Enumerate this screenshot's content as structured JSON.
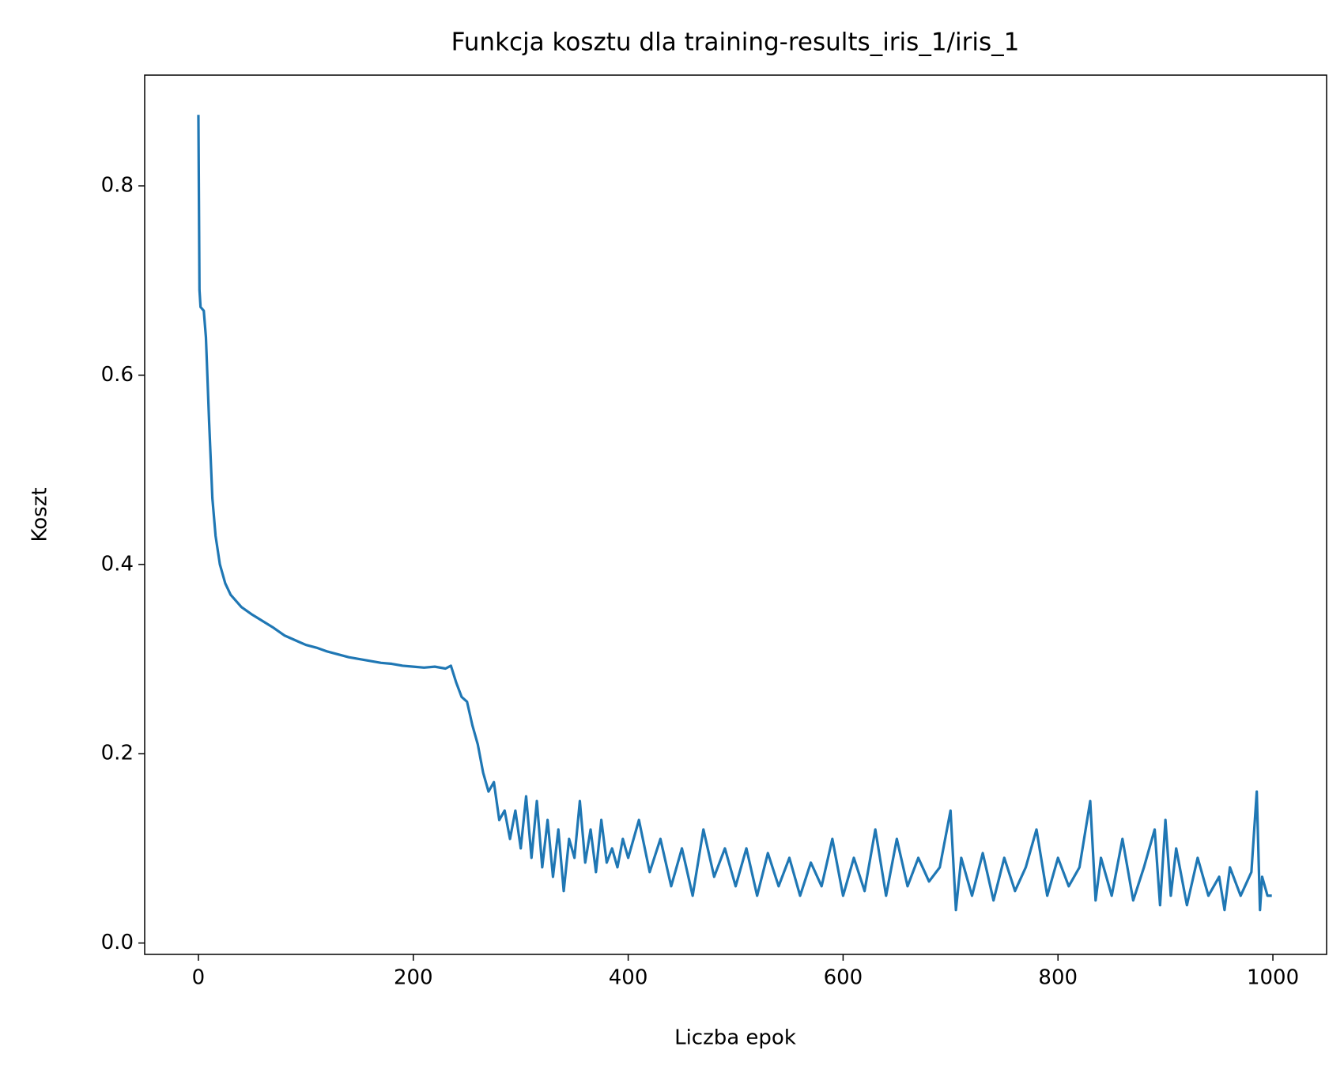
{
  "chart_data": {
    "type": "line",
    "title": "Funkcja kosztu dla training-results_iris_1/iris_1",
    "xlabel": "Liczba epok",
    "ylabel": "Koszt",
    "x": [
      0,
      1,
      2,
      5,
      7,
      10,
      13,
      16,
      20,
      25,
      30,
      40,
      50,
      60,
      70,
      80,
      90,
      100,
      110,
      120,
      130,
      140,
      150,
      160,
      170,
      180,
      190,
      200,
      210,
      220,
      230,
      235,
      240,
      245,
      250,
      255,
      260,
      265,
      270,
      275,
      280,
      285,
      290,
      295,
      300,
      305,
      310,
      315,
      320,
      325,
      330,
      335,
      340,
      345,
      350,
      355,
      360,
      365,
      370,
      375,
      380,
      385,
      390,
      395,
      400,
      410,
      420,
      430,
      440,
      450,
      460,
      470,
      480,
      490,
      500,
      510,
      520,
      530,
      540,
      550,
      560,
      570,
      580,
      590,
      600,
      610,
      620,
      630,
      640,
      650,
      660,
      670,
      680,
      690,
      700,
      705,
      710,
      720,
      730,
      740,
      750,
      760,
      770,
      780,
      790,
      800,
      810,
      820,
      830,
      835,
      840,
      850,
      860,
      870,
      880,
      890,
      895,
      900,
      905,
      910,
      920,
      930,
      940,
      950,
      955,
      960,
      970,
      980,
      985,
      988,
      990,
      995,
      999
    ],
    "series": [
      {
        "color": "#1f77b4",
        "values": [
          0.875,
          0.69,
          0.672,
          0.668,
          0.64,
          0.55,
          0.47,
          0.43,
          0.4,
          0.38,
          0.368,
          0.355,
          0.347,
          0.34,
          0.333,
          0.325,
          0.32,
          0.315,
          0.312,
          0.308,
          0.305,
          0.302,
          0.3,
          0.298,
          0.296,
          0.295,
          0.293,
          0.292,
          0.291,
          0.292,
          0.29,
          0.293,
          0.275,
          0.26,
          0.255,
          0.23,
          0.21,
          0.18,
          0.16,
          0.17,
          0.13,
          0.14,
          0.11,
          0.14,
          0.1,
          0.155,
          0.09,
          0.15,
          0.08,
          0.13,
          0.07,
          0.12,
          0.055,
          0.11,
          0.09,
          0.15,
          0.085,
          0.12,
          0.075,
          0.13,
          0.085,
          0.1,
          0.08,
          0.11,
          0.09,
          0.13,
          0.075,
          0.11,
          0.06,
          0.1,
          0.05,
          0.12,
          0.07,
          0.1,
          0.06,
          0.1,
          0.05,
          0.095,
          0.06,
          0.09,
          0.05,
          0.085,
          0.06,
          0.11,
          0.05,
          0.09,
          0.055,
          0.12,
          0.05,
          0.11,
          0.06,
          0.09,
          0.065,
          0.08,
          0.14,
          0.035,
          0.09,
          0.05,
          0.095,
          0.045,
          0.09,
          0.055,
          0.08,
          0.12,
          0.05,
          0.09,
          0.06,
          0.08,
          0.15,
          0.045,
          0.09,
          0.05,
          0.11,
          0.045,
          0.08,
          0.12,
          0.04,
          0.13,
          0.05,
          0.1,
          0.04,
          0.09,
          0.05,
          0.07,
          0.035,
          0.08,
          0.05,
          0.075,
          0.16,
          0.035,
          0.07,
          0.05,
          0.05
        ]
      }
    ],
    "xlim": [
      -50,
      1050
    ],
    "ylim": [
      -0.012,
      0.917
    ],
    "xticks": [
      0,
      200,
      400,
      600,
      800,
      1000
    ],
    "yticks": [
      {
        "value": 0,
        "label": "0.0"
      },
      0.2,
      0.4,
      0.6,
      0.8
    ]
  }
}
